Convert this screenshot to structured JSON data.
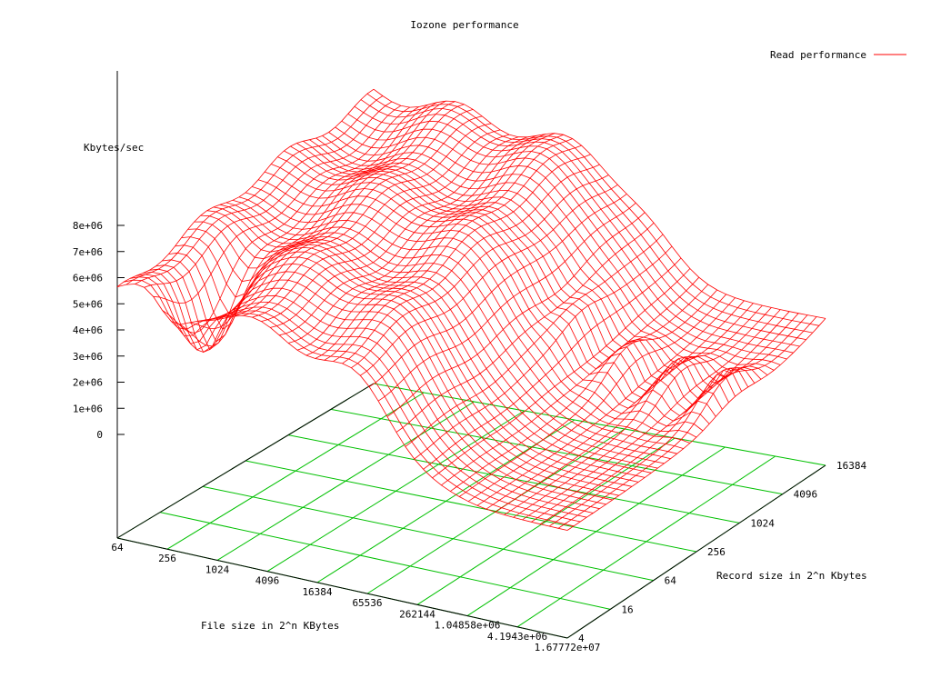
{
  "chart_data": {
    "type": "surface3d",
    "title": "Iozone performance",
    "zlabel": "Kbytes/sec",
    "xlabel": "File size in 2^n KBytes",
    "ylabel": "Record size in 2^n Kbytes",
    "legend": {
      "entries": [
        "Read performance"
      ],
      "placement": "top-right"
    },
    "series": [
      {
        "name": "Read performance",
        "color": "#ff0000"
      }
    ],
    "x_ticks": [
      "64",
      "256",
      "1024",
      "4096",
      "16384",
      "65536",
      "262144",
      "1.04858e+06",
      "4.1943e+06",
      "1.67772e+07"
    ],
    "y_ticks": [
      "4",
      "16",
      "64",
      "256",
      "1024",
      "4096",
      "16384"
    ],
    "z_ticks": [
      "0",
      "1e+06",
      "2e+06",
      "3e+06",
      "4e+06",
      "5e+06",
      "6e+06",
      "7e+06",
      "8e+06"
    ],
    "zlim": [
      0,
      8000000
    ],
    "grid": true,
    "colors": {
      "surface": "#ff0000",
      "grid": "#00c000",
      "axes": "#000000"
    }
  }
}
